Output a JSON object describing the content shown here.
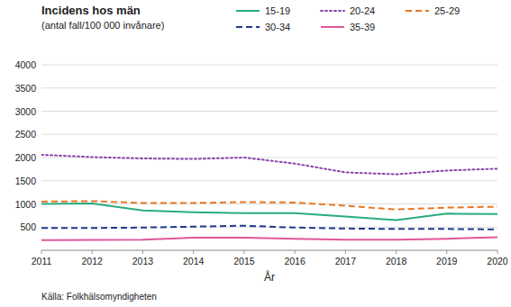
{
  "chart_data": {
    "type": "line",
    "title": "Incidens hos män",
    "subtitle": "(antal fall/100 000 invånare)",
    "x_label": "År",
    "source": "Källa: Folkhälsomyndigheten",
    "x": [
      2011,
      2012,
      2013,
      2014,
      2015,
      2016,
      2017,
      2018,
      2019,
      2020
    ],
    "xlim": [
      2011,
      2020
    ],
    "xticks": [
      2011,
      2012,
      2013,
      2014,
      2015,
      2016,
      2017,
      2018,
      2019,
      2020
    ],
    "series": [
      {
        "name": "15-19",
        "color": "#2aab82",
        "line_style": "solid",
        "values": [
          1000,
          1010,
          860,
          820,
          800,
          800,
          730,
          650,
          790,
          780
        ]
      },
      {
        "name": "20-24",
        "color": "#8B44AC",
        "line_style": "dotted",
        "values": [
          2060,
          2010,
          1980,
          1970,
          2000,
          1870,
          1680,
          1640,
          1720,
          1760
        ]
      },
      {
        "name": "25-29",
        "color": "#E87722",
        "line_style": "dashed",
        "values": [
          1050,
          1060,
          1020,
          1020,
          1040,
          1030,
          960,
          880,
          920,
          940
        ]
      },
      {
        "name": "30-34",
        "color": "#1F3A8A",
        "line_style": "dashed",
        "values": [
          480,
          480,
          490,
          510,
          530,
          490,
          470,
          460,
          460,
          450
        ]
      },
      {
        "name": "35-39",
        "color": "#E0569A",
        "line_style": "solid",
        "values": [
          220,
          225,
          230,
          270,
          270,
          250,
          230,
          230,
          250,
          280
        ]
      }
    ],
    "ylim": [
      0,
      4000
    ],
    "yticks": [
      {
        "value": 0,
        "label": null
      },
      500,
      1000,
      1500,
      2000,
      2500,
      3000,
      3500,
      4000
    ],
    "grid": true,
    "legend": "top"
  }
}
